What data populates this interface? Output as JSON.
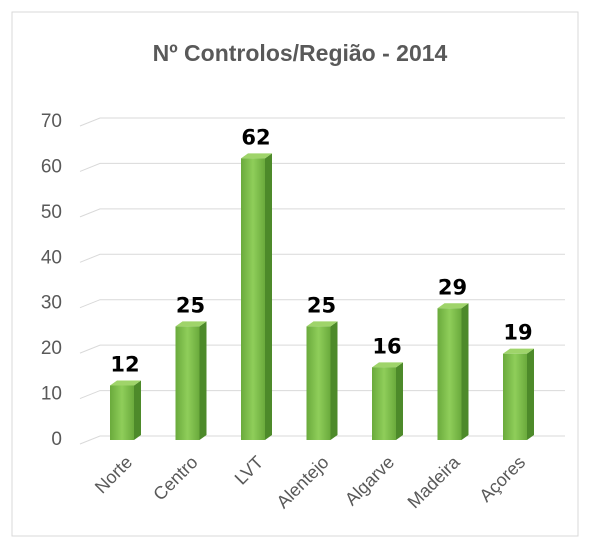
{
  "chart_data": {
    "type": "bar",
    "title": "Nº Controlos/Região - 2014",
    "categories": [
      "Norte",
      "Centro",
      "LVT",
      "Alentejo",
      "Algarve",
      "Madeira",
      "Açores"
    ],
    "values": [
      12,
      25,
      62,
      25,
      16,
      29,
      19
    ],
    "color": "#70ad47",
    "ylim": [
      0,
      70
    ],
    "yticks": [
      0,
      10,
      20,
      30,
      40,
      50,
      60,
      70
    ],
    "grid": true
  }
}
